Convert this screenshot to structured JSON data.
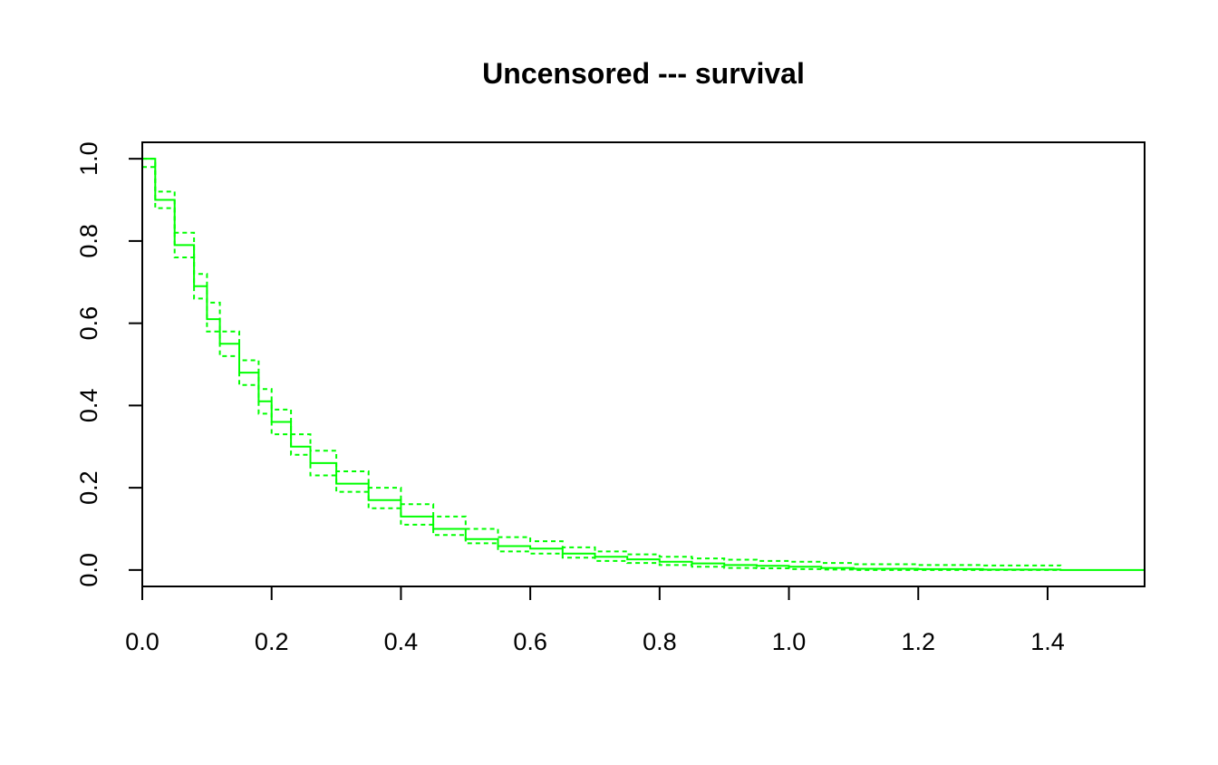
{
  "chart_data": {
    "type": "line",
    "title": "Uncensored --- survival",
    "xlabel": "",
    "ylabel": "",
    "xlim": [
      0,
      1.55
    ],
    "ylim": [
      -0.04,
      1.04
    ],
    "x_ticks": [
      0,
      0.2,
      0.4,
      0.6,
      0.8,
      1.0,
      1.2,
      1.4
    ],
    "x_tick_labels": [
      "0.0",
      "0.2",
      "0.4",
      "0.6",
      "0.8",
      "1.0",
      "1.2",
      "1.4"
    ],
    "y_ticks": [
      0,
      0.2,
      0.4,
      0.6,
      0.8,
      1.0
    ],
    "y_tick_labels": [
      "0.0",
      "0.2",
      "0.4",
      "0.6",
      "0.8",
      "1.0"
    ],
    "grid": false,
    "line_color": "#00ff00",
    "series": [
      {
        "style": "solid",
        "x": [
          0,
          0.02,
          0.05,
          0.08,
          0.1,
          0.12,
          0.15,
          0.18,
          0.2,
          0.23,
          0.26,
          0.3,
          0.35,
          0.4,
          0.45,
          0.5,
          0.55,
          0.6,
          0.65,
          0.7,
          0.75,
          0.8,
          0.85,
          0.9,
          0.95,
          1.0,
          1.05,
          1.1,
          1.2,
          1.3,
          1.42,
          1.55
        ],
        "y": [
          1.0,
          0.9,
          0.79,
          0.69,
          0.61,
          0.55,
          0.48,
          0.41,
          0.36,
          0.3,
          0.26,
          0.21,
          0.17,
          0.13,
          0.1,
          0.075,
          0.058,
          0.052,
          0.04,
          0.032,
          0.026,
          0.02,
          0.016,
          0.012,
          0.01,
          0.008,
          0.005,
          0.003,
          0.002,
          0.001,
          0.0,
          0.0
        ]
      },
      {
        "style": "dashed",
        "x": [
          0,
          0.02,
          0.05,
          0.08,
          0.1,
          0.12,
          0.15,
          0.18,
          0.2,
          0.23,
          0.26,
          0.3,
          0.35,
          0.4,
          0.45,
          0.5,
          0.55,
          0.6,
          0.65,
          0.7,
          0.75,
          0.8,
          0.85,
          0.9,
          0.95,
          1.0,
          1.05,
          1.1,
          1.2,
          1.3,
          1.42
        ],
        "y": [
          1.0,
          0.92,
          0.82,
          0.72,
          0.65,
          0.58,
          0.51,
          0.44,
          0.39,
          0.33,
          0.29,
          0.24,
          0.2,
          0.16,
          0.13,
          0.1,
          0.08,
          0.07,
          0.055,
          0.045,
          0.038,
          0.032,
          0.028,
          0.025,
          0.022,
          0.02,
          0.017,
          0.014,
          0.012,
          0.011,
          0.01
        ]
      },
      {
        "style": "dashed",
        "x": [
          0,
          0.02,
          0.05,
          0.08,
          0.1,
          0.12,
          0.15,
          0.18,
          0.2,
          0.23,
          0.26,
          0.3,
          0.35,
          0.4,
          0.45,
          0.5,
          0.55,
          0.6,
          0.65,
          0.7,
          0.75,
          0.8,
          0.85,
          0.9,
          0.95,
          1.0,
          1.05,
          1.1,
          1.2,
          1.3,
          1.42
        ],
        "y": [
          0.98,
          0.88,
          0.76,
          0.66,
          0.58,
          0.52,
          0.45,
          0.38,
          0.33,
          0.28,
          0.23,
          0.19,
          0.15,
          0.11,
          0.085,
          0.065,
          0.045,
          0.04,
          0.03,
          0.022,
          0.017,
          0.012,
          0.008,
          0.005,
          0.004,
          0.002,
          0.001,
          0.0,
          0.0,
          0.0,
          0.0
        ]
      }
    ]
  }
}
